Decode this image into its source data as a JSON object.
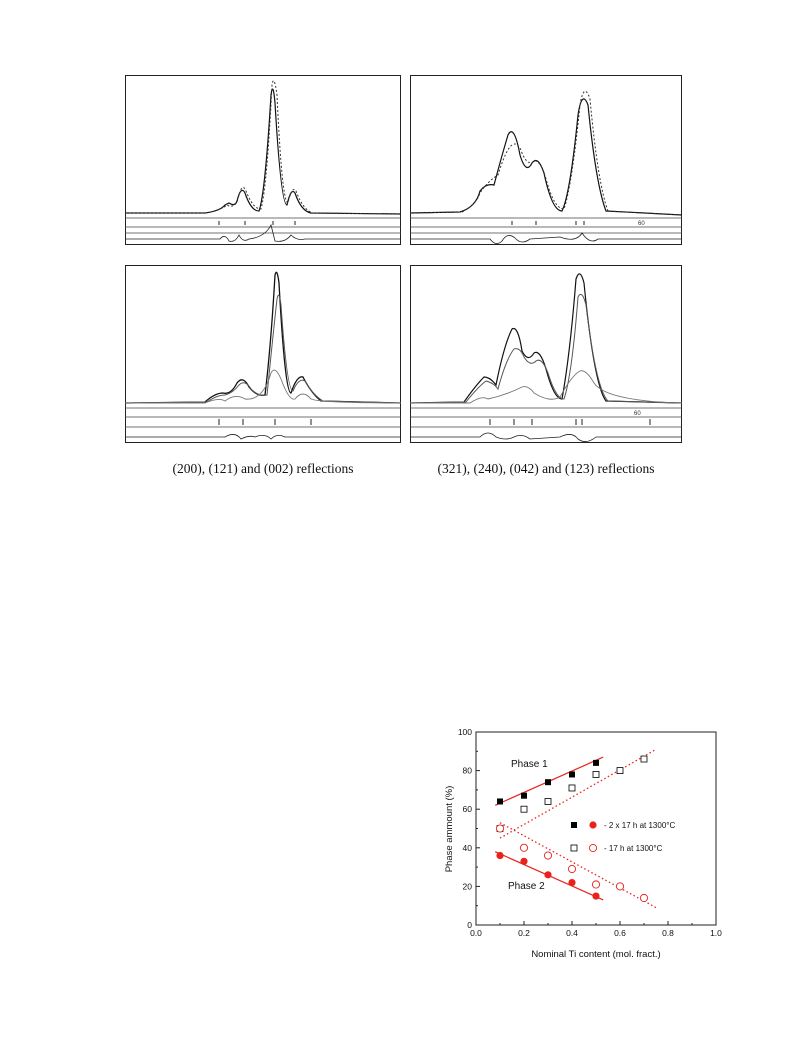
{
  "figure_top": {
    "captions": {
      "left": "(200), (121) and (002) reflections",
      "right": "(321), (240), (042) and (123) reflections"
    },
    "panel_marker": "60"
  },
  "chart_data": {
    "type": "scatter",
    "title": "",
    "xlabel": "Nominal Ti content (mol. fract.)",
    "ylabel": "Phase ammount (%)",
    "xlim": [
      0.0,
      1.0
    ],
    "ylim": [
      0,
      100
    ],
    "xticks": [
      "0.0",
      "0.2",
      "0.4",
      "0.6",
      "0.8",
      "1.0"
    ],
    "yticks": [
      "0",
      "20",
      "40",
      "60",
      "80",
      "100"
    ],
    "annotations": [
      "Phase 1",
      "Phase 2"
    ],
    "legend_placement": "right-middle",
    "legend": [
      {
        "label": "- 2 x 17 h at 1300°C",
        "filled": true
      },
      {
        "label": "- 17 h at 1300°C",
        "filled": false
      }
    ],
    "series": [
      {
        "label_ref": "2x17h",
        "phase": "Phase 1",
        "marker": "filled-square",
        "color": "#000000",
        "x": [
          0.1,
          0.2,
          0.3,
          0.4,
          0.5
        ],
        "y": [
          64,
          67,
          74,
          78,
          84
        ]
      },
      {
        "label_ref": "17h",
        "phase": "Phase 1",
        "marker": "open-square",
        "color": "#000000",
        "x": [
          0.1,
          0.2,
          0.3,
          0.4,
          0.5,
          0.6,
          0.7
        ],
        "y": [
          50,
          60,
          64,
          71,
          78,
          80,
          86
        ]
      },
      {
        "label_ref": "2x17h",
        "phase": "Phase 2",
        "marker": "filled-circle",
        "color": "#e8231c",
        "x": [
          0.1,
          0.2,
          0.3,
          0.4,
          0.5
        ],
        "y": [
          36,
          33,
          26,
          22,
          15
        ]
      },
      {
        "label_ref": "17h",
        "phase": "Phase 2",
        "marker": "open-circle",
        "color": "#e8231c",
        "x": [
          0.1,
          0.2,
          0.3,
          0.4,
          0.5,
          0.6,
          0.7
        ],
        "y": [
          50,
          40,
          36,
          29,
          21,
          20,
          14
        ]
      }
    ],
    "fits": [
      {
        "style": "solid",
        "color": "#e8231c",
        "x": [
          0.08,
          0.53
        ],
        "y": [
          62,
          87
        ]
      },
      {
        "style": "dotted",
        "color": "#e8231c",
        "points": [
          [
            0.1,
            45
          ],
          [
            0.75,
            91
          ]
        ]
      },
      {
        "style": "solid",
        "color": "#e8231c",
        "x": [
          0.08,
          0.53
        ],
        "y": [
          38,
          13
        ]
      },
      {
        "style": "dotted",
        "color": "#e8231c",
        "points": [
          [
            0.1,
            53
          ],
          [
            0.75,
            9
          ]
        ]
      }
    ]
  }
}
